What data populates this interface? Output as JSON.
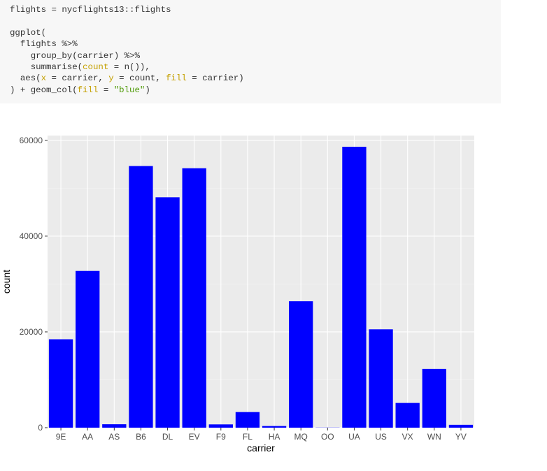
{
  "code": {
    "lines": [
      [
        {
          "t": "flights = nycflights13::flights",
          "c": "plain"
        }
      ],
      [
        {
          "t": "",
          "c": "plain"
        }
      ],
      [
        {
          "t": "ggplot(",
          "c": "plain"
        }
      ],
      [
        {
          "t": "  flights %>%",
          "c": "plain"
        }
      ],
      [
        {
          "t": "    group_by(carrier) %>%",
          "c": "plain"
        }
      ],
      [
        {
          "t": "    summarise(",
          "c": "plain"
        },
        {
          "t": "count",
          "c": "arg"
        },
        {
          "t": " = n()),",
          "c": "plain"
        }
      ],
      [
        {
          "t": "  aes(",
          "c": "plain"
        },
        {
          "t": "x",
          "c": "arg"
        },
        {
          "t": " = carrier, ",
          "c": "plain"
        },
        {
          "t": "y",
          "c": "arg"
        },
        {
          "t": " = count, ",
          "c": "plain"
        },
        {
          "t": "fill",
          "c": "arg"
        },
        {
          "t": " = carrier)",
          "c": "plain"
        }
      ],
      [
        {
          "t": ") + geom_col(",
          "c": "plain"
        },
        {
          "t": "fill",
          "c": "arg"
        },
        {
          "t": " = ",
          "c": "plain"
        },
        {
          "t": "\"blue\"",
          "c": "str"
        },
        {
          "t": ")",
          "c": "plain"
        }
      ]
    ]
  },
  "chart_data": {
    "type": "bar",
    "categories": [
      "9E",
      "AA",
      "AS",
      "B6",
      "DL",
      "EV",
      "F9",
      "FL",
      "HA",
      "MQ",
      "OO",
      "UA",
      "US",
      "VX",
      "WN",
      "YV"
    ],
    "values": [
      18460,
      32729,
      714,
      54635,
      48110,
      54173,
      685,
      3260,
      342,
      26397,
      32,
      58665,
      20536,
      5162,
      12275,
      601
    ],
    "xlabel": "carrier",
    "ylabel": "count",
    "yticks": [
      0,
      20000,
      40000,
      60000
    ],
    "ylim": [
      0,
      61000
    ],
    "grid": true,
    "bar_color": "#0000ff",
    "panel_color": "#ebebeb"
  }
}
